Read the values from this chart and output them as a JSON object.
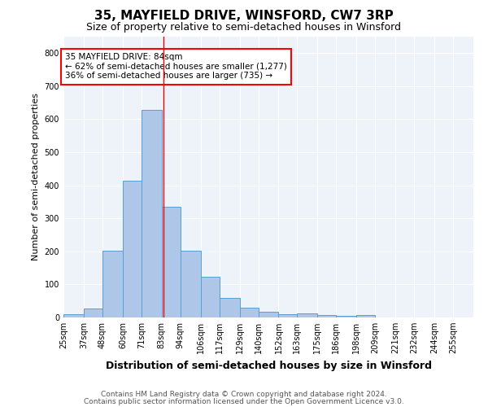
{
  "title": "35, MAYFIELD DRIVE, WINSFORD, CW7 3RP",
  "subtitle": "Size of property relative to semi-detached houses in Winsford",
  "xlabel": "Distribution of semi-detached houses by size in Winsford",
  "ylabel": "Number of semi-detached properties",
  "footnote1": "Contains HM Land Registry data © Crown copyright and database right 2024.",
  "footnote2": "Contains public sector information licensed under the Open Government Licence v3.0.",
  "bar_labels": [
    "25sqm",
    "37sqm",
    "48sqm",
    "60sqm",
    "71sqm",
    "83sqm",
    "94sqm",
    "106sqm",
    "117sqm",
    "129sqm",
    "140sqm",
    "152sqm",
    "163sqm",
    "175sqm",
    "186sqm",
    "198sqm",
    "209sqm",
    "221sqm",
    "232sqm",
    "244sqm",
    "255sqm"
  ],
  "bar_values": [
    10,
    28,
    202,
    415,
    628,
    335,
    202,
    122,
    60,
    30,
    17,
    11,
    12,
    7,
    4,
    8,
    0,
    0,
    0,
    0,
    0
  ],
  "bar_color": "#aec6e8",
  "bar_edge_color": "#5a9fd4",
  "property_line_x": 84,
  "annotation_text1": "35 MAYFIELD DRIVE: 84sqm",
  "annotation_text2": "← 62% of semi-detached houses are smaller (1,277)",
  "annotation_text3": "36% of semi-detached houses are larger (735) →",
  "annotation_box_color": "white",
  "annotation_box_edge": "red",
  "annotation_fontsize": 7.5,
  "ylim": [
    0,
    850
  ],
  "background_color": "#eef2f9",
  "grid_color": "white",
  "title_fontsize": 11,
  "subtitle_fontsize": 9,
  "xlabel_fontsize": 9,
  "ylabel_fontsize": 8,
  "tick_fontsize": 7,
  "footnote_fontsize": 6.5
}
